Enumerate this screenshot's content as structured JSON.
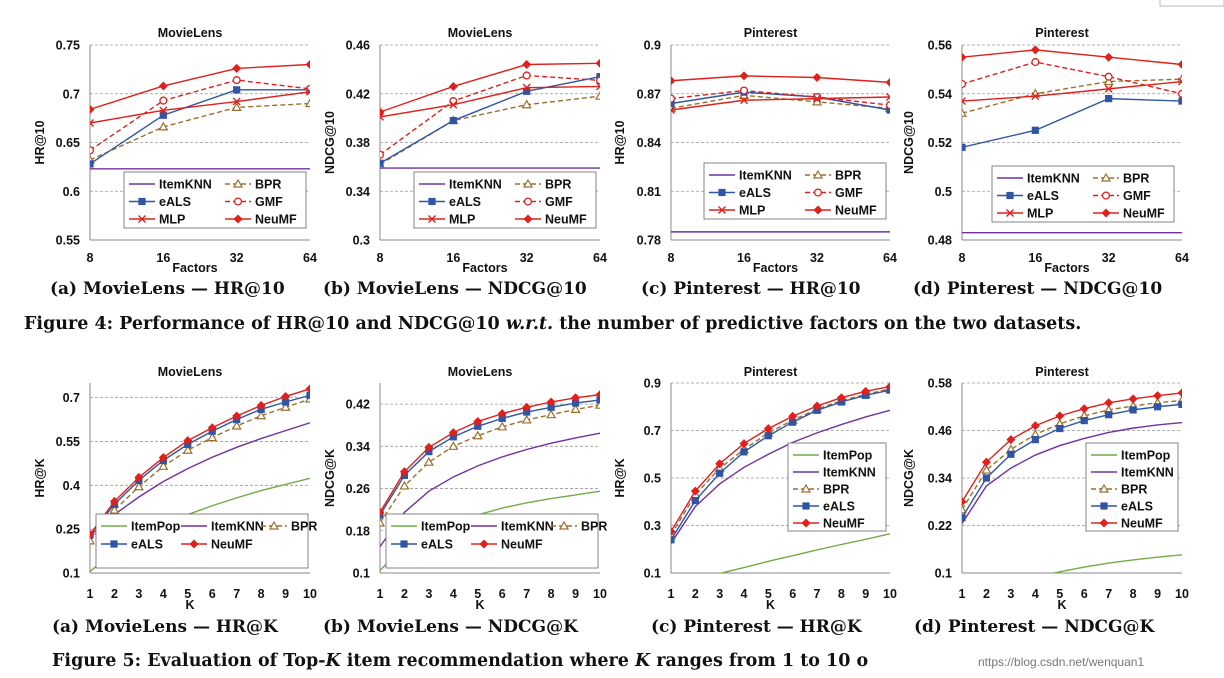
{
  "chart_data": [
    {
      "type": "line",
      "title": "MovieLens",
      "ylabel": "HR@10",
      "xlabel": "Factors",
      "categories": [
        "8",
        "16",
        "32",
        "64"
      ],
      "ylim": [
        0.55,
        0.75
      ],
      "yticks": [
        "0.55",
        "0.6",
        "0.65",
        "0.7",
        "0.75"
      ],
      "legend_position": "bottom-right",
      "legend_columns": 2,
      "subcaption": "(a) MovieLens — HR@10",
      "series": [
        {
          "name": "ItemKNN",
          "style": "itemknn",
          "values": [
            0.623,
            0.623,
            0.623,
            0.623
          ]
        },
        {
          "name": "BPR",
          "style": "bpr",
          "values": [
            0.632,
            0.666,
            0.686,
            0.69
          ]
        },
        {
          "name": "eALS",
          "style": "eals",
          "values": [
            0.628,
            0.678,
            0.704,
            0.704
          ]
        },
        {
          "name": "GMF",
          "style": "gmf",
          "values": [
            0.642,
            0.693,
            0.714,
            0.705
          ]
        },
        {
          "name": "MLP",
          "style": "mlp",
          "values": [
            0.67,
            0.683,
            0.692,
            0.702
          ]
        },
        {
          "name": "NeuMF",
          "style": "neumf",
          "values": [
            0.684,
            0.708,
            0.726,
            0.73
          ]
        }
      ]
    },
    {
      "type": "line",
      "title": "MovieLens",
      "ylabel": "NDCG@10",
      "xlabel": "Factors",
      "categories": [
        "8",
        "16",
        "32",
        "64"
      ],
      "ylim": [
        0.3,
        0.46
      ],
      "yticks": [
        "0.3",
        "0.34",
        "0.38",
        "0.42",
        "0.46"
      ],
      "legend_position": "bottom-right",
      "legend_columns": 2,
      "subcaption": "(b) MovieLens — NDCG@10",
      "series": [
        {
          "name": "ItemKNN",
          "style": "itemknn",
          "values": [
            0.359,
            0.359,
            0.359,
            0.359
          ]
        },
        {
          "name": "BPR",
          "style": "bpr",
          "values": [
            0.362,
            0.398,
            0.411,
            0.418
          ]
        },
        {
          "name": "eALS",
          "style": "eals",
          "values": [
            0.363,
            0.398,
            0.422,
            0.434
          ]
        },
        {
          "name": "GMF",
          "style": "gmf",
          "values": [
            0.37,
            0.414,
            0.435,
            0.431
          ]
        },
        {
          "name": "MLP",
          "style": "mlp",
          "values": [
            0.401,
            0.411,
            0.425,
            0.426
          ]
        },
        {
          "name": "NeuMF",
          "style": "neumf",
          "values": [
            0.405,
            0.426,
            0.444,
            0.445
          ]
        }
      ]
    },
    {
      "type": "line",
      "title": "Pinterest",
      "ylabel": "HR@10",
      "xlabel": "Factors",
      "categories": [
        "8",
        "16",
        "32",
        "64"
      ],
      "ylim": [
        0.78,
        0.9
      ],
      "yticks": [
        "0.78",
        "0.81",
        "0.84",
        "0.87",
        "0.9"
      ],
      "legend_position": "bottom-right",
      "legend_columns": 2,
      "subcaption": "(c) Pinterest — HR@10",
      "series": [
        {
          "name": "ItemKNN",
          "style": "itemknn",
          "values": [
            0.785,
            0.785,
            0.785,
            0.785
          ]
        },
        {
          "name": "BPR",
          "style": "bpr",
          "values": [
            0.861,
            0.869,
            0.865,
            0.861
          ]
        },
        {
          "name": "eALS",
          "style": "eals",
          "values": [
            0.864,
            0.871,
            0.868,
            0.86
          ]
        },
        {
          "name": "GMF",
          "style": "gmf",
          "values": [
            0.867,
            0.872,
            0.868,
            0.863
          ]
        },
        {
          "name": "MLP",
          "style": "mlp",
          "values": [
            0.86,
            0.866,
            0.867,
            0.868
          ]
        },
        {
          "name": "NeuMF",
          "style": "neumf",
          "values": [
            0.878,
            0.881,
            0.88,
            0.877
          ]
        }
      ]
    },
    {
      "type": "line",
      "title": "Pinterest",
      "ylabel": "NDCG@10",
      "xlabel": "Factors",
      "categories": [
        "8",
        "16",
        "32",
        "64"
      ],
      "ylim": [
        0.48,
        0.56
      ],
      "yticks": [
        "0.48",
        "0.5",
        "0.52",
        "0.54",
        "0.56"
      ],
      "legend_position": "bottom-right",
      "legend_columns": 2,
      "subcaption": "(d) Pinterest — NDCG@10",
      "series": [
        {
          "name": "ItemKNN",
          "style": "itemknn",
          "values": [
            0.483,
            0.483,
            0.483,
            0.483
          ]
        },
        {
          "name": "BPR",
          "style": "bpr",
          "values": [
            0.532,
            0.54,
            0.545,
            0.546
          ]
        },
        {
          "name": "eALS",
          "style": "eals",
          "values": [
            0.518,
            0.525,
            0.538,
            0.537
          ]
        },
        {
          "name": "GMF",
          "style": "gmf",
          "values": [
            0.544,
            0.553,
            0.547,
            0.54
          ]
        },
        {
          "name": "MLP",
          "style": "mlp",
          "values": [
            0.537,
            0.539,
            0.542,
            0.545
          ]
        },
        {
          "name": "NeuMF",
          "style": "neumf",
          "values": [
            0.555,
            0.558,
            0.555,
            0.552
          ]
        }
      ]
    },
    {
      "type": "line",
      "title": "MovieLens",
      "ylabel": "HR@K",
      "xlabel": "K",
      "categories": [
        "1",
        "2",
        "3",
        "4",
        "5",
        "6",
        "7",
        "8",
        "9",
        "10"
      ],
      "ylim": [
        0.1,
        0.75
      ],
      "yticks": [
        "0.1",
        "0.25",
        "0.4",
        "0.55",
        "0.7"
      ],
      "legend_position": "bottom",
      "legend_columns": 3,
      "subcaption": "(a) MovieLens — HR@K",
      "series": [
        {
          "name": "ItemPop",
          "style": "itempop",
          "values": [
            0.105,
            0.175,
            0.225,
            0.265,
            0.3,
            0.33,
            0.357,
            0.382,
            0.403,
            0.424
          ]
        },
        {
          "name": "ItemKNN",
          "style": "itemknn",
          "values": [
            0.228,
            0.3,
            0.36,
            0.413,
            0.457,
            0.496,
            0.53,
            0.56,
            0.587,
            0.614
          ]
        },
        {
          "name": "BPR",
          "style": "bpr",
          "values": [
            0.21,
            0.315,
            0.395,
            0.465,
            0.52,
            0.563,
            0.603,
            0.638,
            0.667,
            0.695
          ]
        },
        {
          "name": "eALS",
          "style": "eals",
          "values": [
            0.23,
            0.335,
            0.417,
            0.485,
            0.54,
            0.585,
            0.625,
            0.66,
            0.685,
            0.708
          ]
        },
        {
          "name": "NeuMF",
          "style": "neumf",
          "values": [
            0.232,
            0.345,
            0.427,
            0.495,
            0.553,
            0.597,
            0.637,
            0.673,
            0.704,
            0.73
          ]
        }
      ]
    },
    {
      "type": "line",
      "title": "MovieLens",
      "ylabel": "NDCG@K",
      "xlabel": "K",
      "categories": [
        "1",
        "2",
        "3",
        "4",
        "5",
        "6",
        "7",
        "8",
        "9",
        "10"
      ],
      "ylim": [
        0.1,
        0.46
      ],
      "yticks": [
        "0.1",
        "0.18",
        "0.26",
        "0.34",
        "0.42"
      ],
      "legend_position": "bottom",
      "legend_columns": 3,
      "subcaption": "(b) MovieLens — NDCG@K",
      "series": [
        {
          "name": "ItemPop",
          "style": "itempop",
          "values": [
            0.105,
            0.15,
            0.175,
            0.195,
            0.21,
            0.223,
            0.233,
            0.241,
            0.248,
            0.255
          ]
        },
        {
          "name": "ItemKNN",
          "style": "itemknn",
          "values": [
            0.15,
            0.215,
            0.255,
            0.282,
            0.303,
            0.32,
            0.334,
            0.346,
            0.356,
            0.365
          ]
        },
        {
          "name": "BPR",
          "style": "bpr",
          "values": [
            0.195,
            0.265,
            0.31,
            0.34,
            0.36,
            0.377,
            0.39,
            0.4,
            0.41,
            0.418
          ]
        },
        {
          "name": "eALS",
          "style": "eals",
          "values": [
            0.21,
            0.285,
            0.33,
            0.358,
            0.378,
            0.393,
            0.405,
            0.414,
            0.422,
            0.428
          ]
        },
        {
          "name": "NeuMF",
          "style": "neumf",
          "values": [
            0.215,
            0.292,
            0.338,
            0.366,
            0.387,
            0.402,
            0.414,
            0.424,
            0.432,
            0.438
          ]
        }
      ]
    },
    {
      "type": "line",
      "title": "Pinterest",
      "ylabel": "HR@K",
      "xlabel": "K",
      "categories": [
        "1",
        "2",
        "3",
        "4",
        "5",
        "6",
        "7",
        "8",
        "9",
        "10"
      ],
      "ylim": [
        0.1,
        0.9
      ],
      "yticks": [
        "0.1",
        "0.3",
        "0.5",
        "0.7",
        "0.9"
      ],
      "legend_position": "right",
      "legend_columns": 1,
      "subcaption": "(c) Pinterest — HR@K",
      "series": [
        {
          "name": "ItemPop",
          "style": "itempop",
          "values": [
            0.04,
            0.07,
            0.098,
            0.123,
            0.149,
            0.173,
            0.197,
            0.22,
            0.242,
            0.265
          ]
        },
        {
          "name": "ItemKNN",
          "style": "itemknn",
          "values": [
            0.225,
            0.38,
            0.475,
            0.545,
            0.6,
            0.65,
            0.69,
            0.725,
            0.757,
            0.785
          ]
        },
        {
          "name": "BPR",
          "style": "bpr",
          "values": [
            0.26,
            0.43,
            0.54,
            0.62,
            0.69,
            0.743,
            0.79,
            0.825,
            0.852,
            0.875
          ]
        },
        {
          "name": "eALS",
          "style": "eals",
          "values": [
            0.24,
            0.405,
            0.52,
            0.61,
            0.678,
            0.735,
            0.785,
            0.82,
            0.848,
            0.87
          ]
        },
        {
          "name": "NeuMF",
          "style": "neumf",
          "values": [
            0.275,
            0.445,
            0.56,
            0.645,
            0.708,
            0.76,
            0.803,
            0.838,
            0.865,
            0.885
          ]
        }
      ]
    },
    {
      "type": "line",
      "title": "Pinterest",
      "ylabel": "NDCG@K",
      "xlabel": "K",
      "categories": [
        "1",
        "2",
        "3",
        "4",
        "5",
        "6",
        "7",
        "8",
        "9",
        "10"
      ],
      "ylim": [
        0.1,
        0.58
      ],
      "yticks": [
        "0.1",
        "0.22",
        "0.34",
        "0.46",
        "0.58"
      ],
      "legend_position": "right",
      "legend_columns": 1,
      "subcaption": "(d) Pinterest — NDCG@K",
      "series": [
        {
          "name": "ItemPop",
          "style": "itempop",
          "values": [
            0.04,
            0.06,
            0.075,
            0.09,
            0.103,
            0.115,
            0.125,
            0.133,
            0.14,
            0.146
          ]
        },
        {
          "name": "ItemKNN",
          "style": "itemknn",
          "values": [
            0.225,
            0.32,
            0.365,
            0.398,
            0.422,
            0.44,
            0.455,
            0.466,
            0.474,
            0.48
          ]
        },
        {
          "name": "BPR",
          "style": "bpr",
          "values": [
            0.26,
            0.36,
            0.412,
            0.45,
            0.477,
            0.497,
            0.512,
            0.522,
            0.53,
            0.536
          ]
        },
        {
          "name": "eALS",
          "style": "eals",
          "values": [
            0.24,
            0.34,
            0.4,
            0.437,
            0.465,
            0.485,
            0.5,
            0.512,
            0.52,
            0.526
          ]
        },
        {
          "name": "NeuMF",
          "style": "neumf",
          "values": [
            0.28,
            0.38,
            0.437,
            0.472,
            0.497,
            0.515,
            0.53,
            0.54,
            0.548,
            0.555
          ]
        }
      ]
    }
  ],
  "captions": {
    "fig4": "Figure 4: Performance of HR@10 and NDCG@10 w.r.t. the number of predictive factors on the two datasets.",
    "fig5": "Figure 5: Evaluation of Top-K item recommendation where K ranges from 1 to 10 o"
  },
  "watermark": "nttps://blog.csdn.net/wenquan1"
}
